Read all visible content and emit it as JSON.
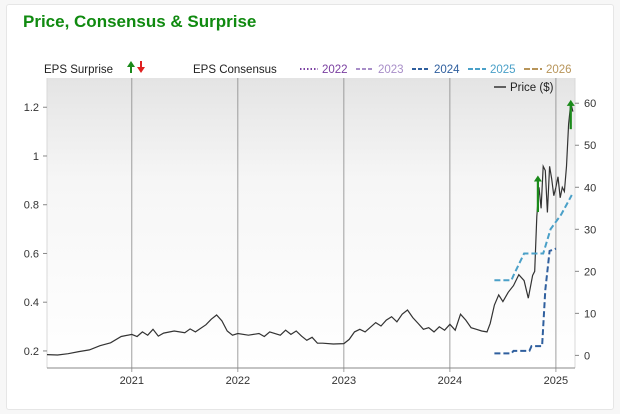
{
  "title": "Price, Consensus & Surprise",
  "legend": {
    "surprise_label": "EPS Surprise",
    "consensus_label": "EPS Consensus",
    "price_label": "Price ($)"
  },
  "colors": {
    "price": "#333333",
    "up_arrow": "#1a8a1a",
    "down_arrow": "#e02020",
    "2022": "#7a3fa0",
    "2023": "#a88ec8",
    "2024": "#2f5f9e",
    "2025": "#4aa0c8",
    "2026": "#b8955a"
  },
  "chart_data": {
    "type": "line",
    "x_ticks": [
      "2021",
      "2022",
      "2023",
      "2024",
      "2025"
    ],
    "x_range": [
      2020.2,
      2025.18
    ],
    "left_axis": {
      "label": "",
      "ticks": [
        0.2,
        0.4,
        0.6,
        0.8,
        1,
        1.2
      ],
      "range": [
        0.13,
        1.32
      ]
    },
    "right_axis": {
      "label": "Price ($)",
      "ticks": [
        0,
        10,
        20,
        30,
        40,
        50,
        60
      ],
      "range": [
        -3,
        66
      ]
    },
    "grid": false,
    "legend_position": "top",
    "series": [
      {
        "name": "Price ($)",
        "axis": "right",
        "style": "solid",
        "color": "#333333",
        "points": [
          [
            2020.2,
            0.2
          ],
          [
            2020.3,
            0.1
          ],
          [
            2020.4,
            0.4
          ],
          [
            2020.5,
            0.9
          ],
          [
            2020.6,
            1.3
          ],
          [
            2020.7,
            2.3
          ],
          [
            2020.8,
            3.0
          ],
          [
            2020.9,
            4.5
          ],
          [
            2021.0,
            5.0
          ],
          [
            2021.05,
            4.5
          ],
          [
            2021.1,
            5.6
          ],
          [
            2021.15,
            4.8
          ],
          [
            2021.2,
            6.2
          ],
          [
            2021.25,
            4.6
          ],
          [
            2021.3,
            5.3
          ],
          [
            2021.4,
            5.8
          ],
          [
            2021.5,
            5.4
          ],
          [
            2021.55,
            6.3
          ],
          [
            2021.6,
            5.6
          ],
          [
            2021.7,
            7.3
          ],
          [
            2021.75,
            8.6
          ],
          [
            2021.8,
            9.6
          ],
          [
            2021.85,
            8.2
          ],
          [
            2021.9,
            5.8
          ],
          [
            2021.95,
            4.8
          ],
          [
            2022.0,
            5.2
          ],
          [
            2022.1,
            4.8
          ],
          [
            2022.2,
            5.2
          ],
          [
            2022.25,
            4.5
          ],
          [
            2022.3,
            5.6
          ],
          [
            2022.4,
            4.8
          ],
          [
            2022.45,
            6.0
          ],
          [
            2022.5,
            5.0
          ],
          [
            2022.55,
            5.8
          ],
          [
            2022.6,
            4.6
          ],
          [
            2022.65,
            3.6
          ],
          [
            2022.7,
            4.3
          ],
          [
            2022.75,
            2.9
          ],
          [
            2022.8,
            2.9
          ],
          [
            2022.9,
            2.7
          ],
          [
            2023.0,
            2.8
          ],
          [
            2023.05,
            3.8
          ],
          [
            2023.1,
            5.6
          ],
          [
            2023.15,
            6.2
          ],
          [
            2023.2,
            5.6
          ],
          [
            2023.3,
            7.8
          ],
          [
            2023.35,
            7.0
          ],
          [
            2023.4,
            8.4
          ],
          [
            2023.45,
            9.2
          ],
          [
            2023.5,
            8.0
          ],
          [
            2023.55,
            9.8
          ],
          [
            2023.6,
            10.8
          ],
          [
            2023.65,
            9.0
          ],
          [
            2023.7,
            7.6
          ],
          [
            2023.75,
            6.2
          ],
          [
            2023.8,
            6.6
          ],
          [
            2023.85,
            5.6
          ],
          [
            2023.9,
            6.8
          ],
          [
            2023.95,
            6.0
          ],
          [
            2024.0,
            7.4
          ],
          [
            2024.05,
            6.0
          ],
          [
            2024.1,
            9.8
          ],
          [
            2024.15,
            8.4
          ],
          [
            2024.2,
            6.6
          ],
          [
            2024.25,
            6.2
          ],
          [
            2024.3,
            5.8
          ],
          [
            2024.35,
            5.6
          ],
          [
            2024.38,
            7.6
          ],
          [
            2024.42,
            12.0
          ],
          [
            2024.46,
            14.4
          ],
          [
            2024.5,
            12.8
          ],
          [
            2024.55,
            15.0
          ],
          [
            2024.6,
            16.6
          ],
          [
            2024.65,
            19.2
          ],
          [
            2024.7,
            17.8
          ],
          [
            2024.74,
            13.6
          ],
          [
            2024.78,
            19.0
          ],
          [
            2024.8,
            20.0
          ],
          [
            2024.82,
            33.0
          ],
          [
            2024.84,
            40.0
          ],
          [
            2024.86,
            35.0
          ],
          [
            2024.88,
            45.0
          ],
          [
            2024.9,
            44.0
          ],
          [
            2024.92,
            34.0
          ],
          [
            2024.94,
            45.0
          ],
          [
            2024.96,
            42.0
          ],
          [
            2024.98,
            38.0
          ],
          [
            2025.0,
            40.0
          ],
          [
            2025.02,
            42.5
          ],
          [
            2025.04,
            37.5
          ],
          [
            2025.06,
            40.0
          ],
          [
            2025.08,
            39.0
          ],
          [
            2025.1,
            45.0
          ],
          [
            2025.12,
            55.0
          ],
          [
            2025.14,
            60.0
          ],
          [
            2025.16,
            58.0
          ]
        ]
      },
      {
        "name": "2024",
        "axis": "left",
        "style": "dashed",
        "color": "#2f5f9e",
        "points": [
          [
            2024.42,
            0.19
          ],
          [
            2024.58,
            0.19
          ],
          [
            2024.6,
            0.2
          ],
          [
            2024.75,
            0.2
          ],
          [
            2024.77,
            0.22
          ],
          [
            2024.87,
            0.22
          ],
          [
            2024.9,
            0.45
          ],
          [
            2024.94,
            0.61
          ],
          [
            2025.0,
            0.62
          ]
        ]
      },
      {
        "name": "2025",
        "axis": "left",
        "style": "dashed",
        "color": "#4aa0c8",
        "points": [
          [
            2024.42,
            0.49
          ],
          [
            2024.58,
            0.49
          ],
          [
            2024.6,
            0.51
          ],
          [
            2024.7,
            0.6
          ],
          [
            2024.76,
            0.6
          ],
          [
            2024.88,
            0.6
          ],
          [
            2024.95,
            0.7
          ],
          [
            2025.05,
            0.76
          ],
          [
            2025.15,
            0.84
          ]
        ]
      }
    ],
    "surprise_markers": [
      {
        "type": "up",
        "x": 2024.83,
        "y_top": 0.92,
        "y_bottom": 0.77
      },
      {
        "type": "up",
        "x": 2025.14,
        "y_top": 1.23,
        "y_bottom": 1.11
      }
    ]
  }
}
